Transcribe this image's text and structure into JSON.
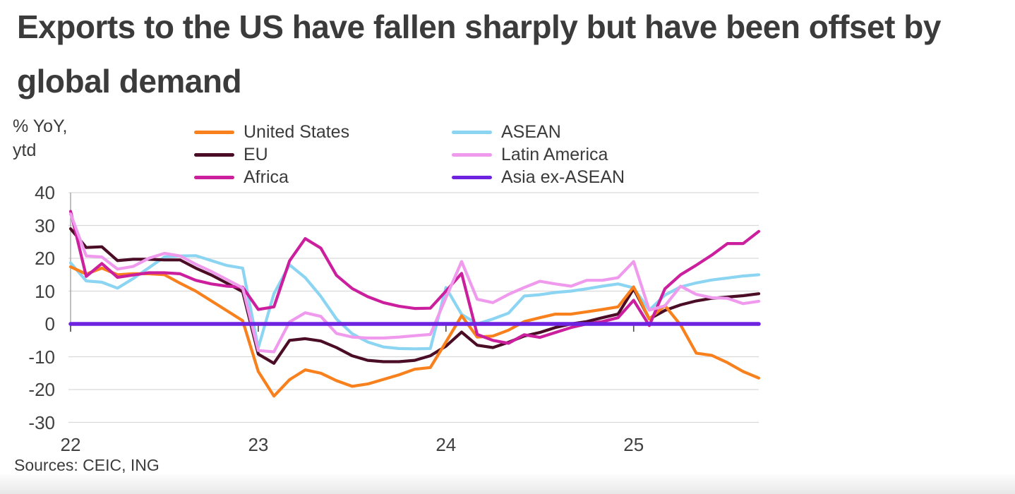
{
  "title": {
    "line1": "Exports to the US have fallen sharply but have been offset by",
    "line2": "global demand"
  },
  "axis_unit": {
    "line1": "% YoY,",
    "line2": "ytd"
  },
  "source_note": "Sources: CEIC, ING",
  "colors": {
    "title_text": "#3b3b3b",
    "tick_text": "#404040",
    "gridline": "#d9d9d9",
    "axis_line": "#9e9e9e",
    "tick_mark": "#4d4d4d",
    "united_states": "#f8811e",
    "eu": "#4b0c26",
    "africa": "#cb1f9e",
    "asean": "#8bd4f2",
    "latin_america": "#f09aee",
    "asia_ex_asean": "#6e23e0"
  },
  "chart_data": {
    "type": "line",
    "title": "Exports to the US have fallen sharply but have been offset by global demand",
    "ylabel": "% YoY, ytd",
    "ylim": [
      -30,
      40
    ],
    "y_ticks": [
      40,
      30,
      20,
      10,
      0,
      -10,
      -20,
      -30
    ],
    "x_tick_labels": [
      "22",
      "23",
      "24",
      "25"
    ],
    "frequency": "monthly",
    "grid": "horizontal",
    "legend_position": "top",
    "legend_columns": [
      [
        0,
        1,
        2
      ],
      [
        3,
        4,
        5
      ]
    ],
    "series": [
      {
        "name": "United States",
        "color": "#f8811e",
        "values": [
          17.4,
          15.2,
          17.0,
          15.0,
          15.3,
          15.3,
          15.0,
          12.4,
          10.0,
          7.0,
          4.0,
          1.0,
          -14.5,
          -22.0,
          -17.0,
          -14.0,
          -15.0,
          -17.3,
          -19.0,
          -18.3,
          -16.9,
          -15.5,
          -13.8,
          -13.3,
          -5.5,
          2.5,
          -4.0,
          -3.7,
          -1.9,
          0.7,
          1.9,
          3.0,
          3.0,
          3.7,
          4.4,
          5.2,
          11.3,
          1.5,
          5.6,
          -0.3,
          -8.9,
          -9.6,
          -11.8,
          -14.5,
          -16.5
        ]
      },
      {
        "name": "EU",
        "color": "#4b0c26",
        "values": [
          29.0,
          23.3,
          23.5,
          19.3,
          19.7,
          19.7,
          19.5,
          19.5,
          17.0,
          14.9,
          12.4,
          9.8,
          -9.2,
          -12.0,
          -5.0,
          -4.5,
          -5.2,
          -7.2,
          -9.7,
          -11.1,
          -11.5,
          -11.5,
          -11.1,
          -9.7,
          -6.8,
          -2.5,
          -6.5,
          -7.2,
          -5.6,
          -3.7,
          -2.6,
          -1.1,
          0.0,
          0.7,
          1.9,
          3.0,
          10.7,
          1.5,
          4.1,
          5.8,
          7.0,
          7.8,
          8.2,
          8.6,
          9.2
        ]
      },
      {
        "name": "Africa",
        "color": "#cb1f9e",
        "values": [
          34.3,
          14.5,
          18.4,
          14.2,
          14.9,
          15.6,
          15.6,
          15.3,
          13.3,
          12.2,
          11.5,
          11.2,
          4.4,
          5.2,
          19.2,
          26.0,
          23.1,
          14.8,
          10.8,
          8.3,
          6.5,
          5.4,
          4.7,
          4.8,
          10.0,
          15.4,
          -3.2,
          -5.0,
          -5.9,
          -3.3,
          -4.1,
          -2.6,
          -1.1,
          0.0,
          0.7,
          1.9,
          7.2,
          -0.5,
          10.7,
          15.0,
          17.9,
          21.0,
          24.5,
          24.5,
          28.2
        ]
      },
      {
        "name": "ASEAN",
        "color": "#8bd4f2",
        "values": [
          18.6,
          13.1,
          12.7,
          10.9,
          13.8,
          17.1,
          20.4,
          20.7,
          20.8,
          19.3,
          17.8,
          17.0,
          -7.3,
          9.2,
          18.0,
          14.1,
          8.4,
          1.5,
          -3.0,
          -5.5,
          -7.0,
          -7.5,
          -7.6,
          -7.5,
          11.1,
          2.9,
          0.0,
          1.5,
          3.3,
          8.5,
          8.9,
          9.6,
          10.0,
          10.7,
          11.5,
          12.2,
          11.0,
          4.2,
          8.8,
          11.3,
          12.5,
          13.4,
          14.0,
          14.6,
          15.0
        ]
      },
      {
        "name": "Latin America",
        "color": "#f09aee",
        "values": [
          33.5,
          20.7,
          20.4,
          16.7,
          17.5,
          20.0,
          21.5,
          20.7,
          18.2,
          16.0,
          13.5,
          11.0,
          -8.1,
          -8.5,
          0.6,
          3.4,
          2.3,
          -2.9,
          -4.0,
          -4.3,
          -4.3,
          -4.0,
          -3.6,
          -3.2,
          8.0,
          19.0,
          7.5,
          6.5,
          9.0,
          11.1,
          13.0,
          12.2,
          11.5,
          13.3,
          13.3,
          14.1,
          19.0,
          4.2,
          5.5,
          11.5,
          9.0,
          8.0,
          7.8,
          6.2,
          6.9
        ]
      },
      {
        "name": "Asia ex-ASEAN",
        "color": "#6e23e0",
        "values": [
          0,
          0,
          0,
          0,
          0,
          0,
          0,
          0,
          0,
          0,
          0,
          0,
          0,
          0,
          0,
          0,
          0,
          0,
          0,
          0,
          0,
          0,
          0,
          0,
          0,
          0,
          0,
          0,
          0,
          0,
          0,
          0,
          0,
          0,
          0,
          0,
          0,
          0,
          0,
          0,
          0,
          0,
          0,
          0,
          0
        ]
      }
    ]
  }
}
